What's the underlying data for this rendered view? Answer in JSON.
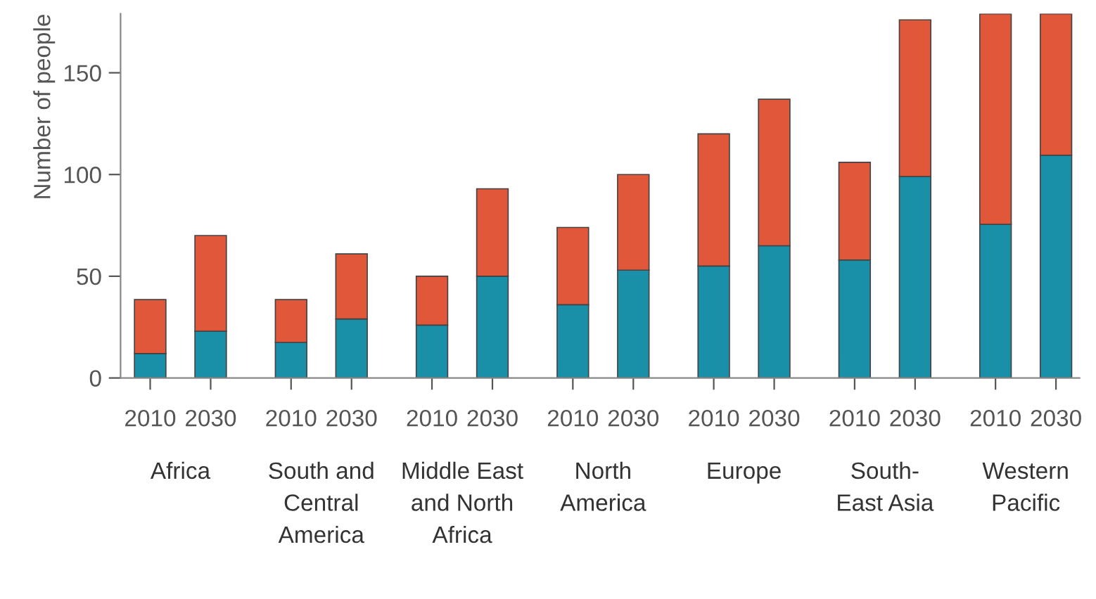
{
  "chart_data": {
    "type": "bar",
    "stacked": true,
    "ylabel": "Number of people",
    "categories": [
      "2010",
      "2030",
      "2010",
      "2030",
      "2010",
      "2030",
      "2010",
      "2030",
      "2010",
      "2030",
      "2010",
      "2030",
      "2010",
      "2030"
    ],
    "series": [
      {
        "color": "#1a8fa8",
        "values": [
          12,
          23,
          17.5,
          29,
          26,
          50,
          36,
          53,
          55,
          65,
          58,
          99,
          75.5,
          109.5
        ]
      },
      {
        "color": "#e0573a",
        "values": [
          26.5,
          47,
          21,
          32,
          24,
          43,
          38,
          47,
          65,
          72,
          48,
          77,
          103.5,
          69.5
        ]
      }
    ],
    "ylim": [
      0,
      179
    ],
    "yticks": [
      0,
      50,
      100,
      150
    ],
    "grid": false,
    "legend": false,
    "annotations": [
      "Africa",
      "South and\nCentral\nAmerica",
      "Middle East\nand North\nAfrica",
      "North\nAmerica",
      "Europe",
      "South-\nEast Asia",
      "Western\nPacific"
    ]
  }
}
